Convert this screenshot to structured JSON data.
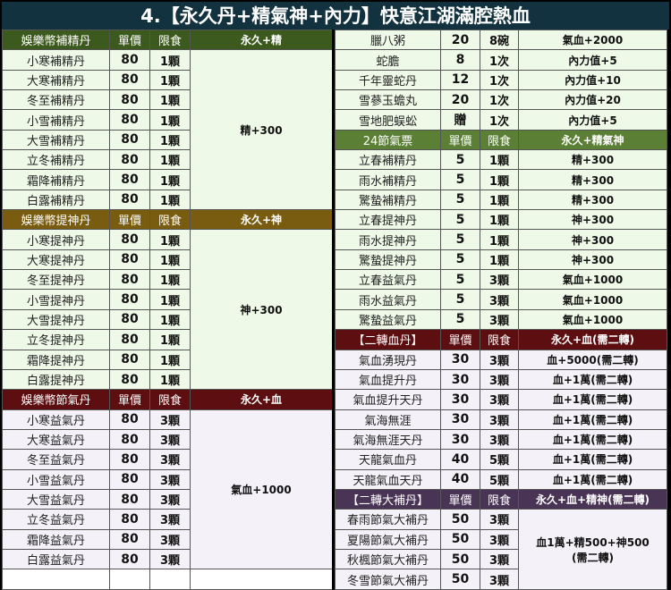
{
  "title": "4.【永久丹+精氣神+內力】快意江湖滿腔熱血",
  "colors": {
    "title_bg": "#12323f",
    "green_dark": "#3d5a1e",
    "brown": "#7a5c10",
    "dark_red": "#5c0e10",
    "green": "#5a7f35",
    "purple": "#4a3456",
    "light_green": "#eff9e8",
    "light_lavender": "#f4f2f8"
  },
  "left": [
    {
      "header": {
        "name": "娛樂幣補精丹",
        "price": "單價",
        "limit": "限食",
        "effect": "永久+精",
        "color": "#3d5a1e"
      },
      "bg": "#eff9e8",
      "merged_effect": [
        "精+300"
      ],
      "rows": [
        {
          "name": "小寒補精丹",
          "price": "80",
          "limit": "1顆"
        },
        {
          "name": "大寒補精丹",
          "price": "80",
          "limit": "1顆"
        },
        {
          "name": "冬至補精丹",
          "price": "80",
          "limit": "1顆"
        },
        {
          "name": "小雪補精丹",
          "price": "80",
          "limit": "1顆"
        },
        {
          "name": "大雪補精丹",
          "price": "80",
          "limit": "1顆"
        },
        {
          "name": "立冬補精丹",
          "price": "80",
          "limit": "1顆"
        },
        {
          "name": "霜降補精丹",
          "price": "80",
          "limit": "1顆"
        },
        {
          "name": "白露補精丹",
          "price": "80",
          "limit": "1顆"
        }
      ]
    },
    {
      "header": {
        "name": "娛樂幣提神丹",
        "price": "單價",
        "limit": "限食",
        "effect": "永久+神",
        "color": "#7a5c10"
      },
      "bg": "#eff9e8",
      "merged_effect": [
        "神+300"
      ],
      "rows": [
        {
          "name": "小寒提神丹",
          "price": "80",
          "limit": "1顆"
        },
        {
          "name": "大寒提神丹",
          "price": "80",
          "limit": "1顆"
        },
        {
          "name": "冬至提神丹",
          "price": "80",
          "limit": "1顆"
        },
        {
          "name": "小雪提神丹",
          "price": "80",
          "limit": "1顆"
        },
        {
          "name": "大雪提神丹",
          "price": "80",
          "limit": "1顆"
        },
        {
          "name": "立冬提神丹",
          "price": "80",
          "limit": "1顆"
        },
        {
          "name": "霜降提神丹",
          "price": "80",
          "limit": "1顆"
        },
        {
          "name": "白露提神丹",
          "price": "80",
          "limit": "1顆"
        }
      ]
    },
    {
      "header": {
        "name": "娛樂幣節氣丹",
        "price": "單價",
        "limit": "限食",
        "effect": "永久+血",
        "color": "#5c0e10"
      },
      "bg": "#f4f2f8",
      "merged_effect": [
        "氣血+1000"
      ],
      "rows": [
        {
          "name": "小寒益氣丹",
          "price": "80",
          "limit": "3顆"
        },
        {
          "name": "大寒益氣丹",
          "price": "80",
          "limit": "3顆"
        },
        {
          "name": "冬至益氣丹",
          "price": "80",
          "limit": "3顆"
        },
        {
          "name": "小雪益氣丹",
          "price": "80",
          "limit": "3顆"
        },
        {
          "name": "大雪益氣丹",
          "price": "80",
          "limit": "3顆"
        },
        {
          "name": "立冬益氣丹",
          "price": "80",
          "limit": "3顆"
        },
        {
          "name": "霜降益氣丹",
          "price": "80",
          "limit": "3顆"
        },
        {
          "name": "白露益氣丹",
          "price": "80",
          "limit": "3顆"
        }
      ]
    },
    {
      "bg": "#ffffff",
      "rows": [
        {
          "name": "",
          "price": "",
          "limit": "",
          "effect": ""
        }
      ]
    }
  ],
  "right": [
    {
      "bg": "#eff9e8",
      "rows": [
        {
          "name": "臘八粥",
          "price": "20",
          "limit": "8碗",
          "effect": "氣血+2000"
        },
        {
          "name": "蛇膽",
          "price": "8",
          "limit": "1次",
          "effect": "內力值+5"
        },
        {
          "name": "千年靈蛇丹",
          "price": "12",
          "limit": "1次",
          "effect": "內力值+10"
        },
        {
          "name": "雪蔘玉蟾丸",
          "price": "20",
          "limit": "1次",
          "effect": "內力值+20"
        },
        {
          "name": "雪地肥蜈蚣",
          "price": "贈",
          "limit": "1次",
          "effect": "內力值+5"
        }
      ]
    },
    {
      "header": {
        "name": "24節氣票",
        "price": "單價",
        "limit": "限食",
        "effect": "永久+精氣神",
        "color": "#5a7f35"
      },
      "bg": "#eff9e8",
      "rows": [
        {
          "name": "立春補精丹",
          "price": "5",
          "limit": "1顆",
          "effect": "精+300"
        },
        {
          "name": "雨水補精丹",
          "price": "5",
          "limit": "1顆",
          "effect": "精+300"
        },
        {
          "name": "驚蟄補精丹",
          "price": "5",
          "limit": "1顆",
          "effect": "精+300"
        },
        {
          "name": "立春提神丹",
          "price": "5",
          "limit": "1顆",
          "effect": "神+300"
        },
        {
          "name": "雨水提神丹",
          "price": "5",
          "limit": "1顆",
          "effect": "神+300"
        },
        {
          "name": "驚蟄提神丹",
          "price": "5",
          "limit": "1顆",
          "effect": "神+300"
        },
        {
          "name": "立春益氣丹",
          "price": "5",
          "limit": "3顆",
          "effect": "氣血+1000"
        },
        {
          "name": "雨水益氣丹",
          "price": "5",
          "limit": "3顆",
          "effect": "氣血+1000"
        },
        {
          "name": "驚蟄益氣丹",
          "price": "5",
          "limit": "3顆",
          "effect": "氣血+1000"
        }
      ]
    },
    {
      "header": {
        "name": "【二轉血丹】",
        "price": "單價",
        "limit": "限食",
        "effect": "永久+血(需二轉)",
        "color": "#5c0e10"
      },
      "bg": "#f4f2f8",
      "rows": [
        {
          "name": "氣血湧現丹",
          "price": "30",
          "limit": "3顆",
          "effect": "血+5000(需二轉)"
        },
        {
          "name": "氣血提升丹",
          "price": "30",
          "limit": "3顆",
          "effect": "血+1萬(需二轉)"
        },
        {
          "name": "氣血提升天丹",
          "price": "30",
          "limit": "3顆",
          "effect": "血+1萬(需二轉)"
        },
        {
          "name": "氣海無涯",
          "price": "30",
          "limit": "3顆",
          "effect": "血+1萬(需二轉)"
        },
        {
          "name": "氣海無涯天丹",
          "price": "30",
          "limit": "3顆",
          "effect": "血+1萬(需二轉)"
        },
        {
          "name": "天龍氣血丹",
          "price": "40",
          "limit": "5顆",
          "effect": "血+1萬(需二轉)"
        },
        {
          "name": "天龍氣血天丹",
          "price": "40",
          "limit": "5顆",
          "effect": "血+1萬(需二轉)"
        }
      ]
    },
    {
      "header": {
        "name": "【二轉大補丹】",
        "price": "單價",
        "limit": "限食",
        "effect": "永久+血+精神(需二轉)",
        "color": "#4a3456"
      },
      "bg": "#f4f2f8",
      "merged_effect": [
        "血1萬+精500+神500",
        "(需二轉)"
      ],
      "rows": [
        {
          "name": "春雨節氣大補丹",
          "price": "50",
          "limit": "3顆"
        },
        {
          "name": "夏陽節氣大補丹",
          "price": "50",
          "limit": "3顆"
        },
        {
          "name": "秋楓節氣大補丹",
          "price": "50",
          "limit": "3顆"
        },
        {
          "name": "冬雪節氣大補丹",
          "price": "50",
          "limit": "3顆"
        }
      ]
    }
  ]
}
